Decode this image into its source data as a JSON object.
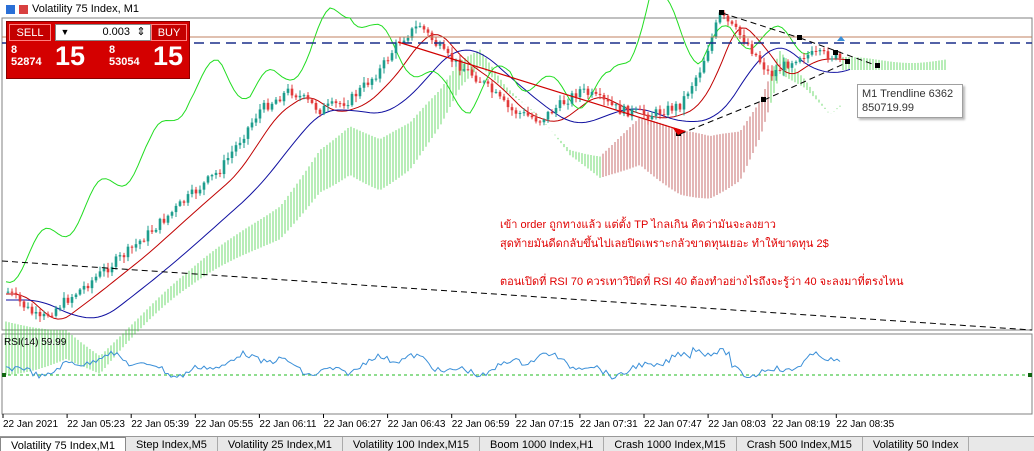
{
  "window": {
    "title": "Volatility 75 Index, M1"
  },
  "trade_panel": {
    "sell_label": "SELL",
    "buy_label": "BUY",
    "lot_value": "0.003",
    "sell_price_small_top": "8",
    "sell_price_small_bottom": "52874",
    "sell_price_big": "15",
    "buy_price_small_top": "8",
    "buy_price_small_bottom": "53054",
    "buy_price_big": "15"
  },
  "trendline_tooltip": {
    "line1": "M1 Trendline 6362",
    "line2": "850719.99"
  },
  "annotations": {
    "line1": "เข้า order ถูกทางแล้ว แต่ตั้ง TP ไกลเกิน คิดว่ามันจะลงยาว",
    "line2": "สุดท้ายมันดีดกลับขึ้นไปเลยปิดเพราะกลัวขาดทุนเยอะ ทำให้ขาดทุน 2$",
    "line3": "ตอนเปิดที่ RSI 70 ควรเทาวิปิดที่ RSI 40 ต้องทำอย่างไรถึงจะรู้ว่า 40 จะลงมาที่ตรงไหน"
  },
  "rsi": {
    "label": "RSI(14) 59.99"
  },
  "time_axis": [
    "22 Jan 2021",
    "22 Jan 05:23",
    "22 Jan 05:39",
    "22 Jan 05:55",
    "22 Jan 06:11",
    "22 Jan 06:27",
    "22 Jan 06:43",
    "22 Jan 06:59",
    "22 Jan 07:15",
    "22 Jan 07:31",
    "22 Jan 07:47",
    "22 Jan 08:03",
    "22 Jan 08:19",
    "22 Jan 08:35"
  ],
  "tabs": [
    {
      "label": "Volatility 75 Index,M1",
      "active": true
    },
    {
      "label": "Step Index,M5",
      "active": false
    },
    {
      "label": "Volatility 25 Index,M1",
      "active": false
    },
    {
      "label": "Volatility 100 Index,M15",
      "active": false
    },
    {
      "label": "Boom 1000 Index,H1",
      "active": false
    },
    {
      "label": "Crash 1000 Index,M15",
      "active": false
    },
    {
      "label": "Crash 500 Index,M15",
      "active": false
    },
    {
      "label": "Volatility 50 Index",
      "active": false
    }
  ],
  "colors": {
    "bull_candle": "#1e9e8e",
    "bear_candle": "#e23b3b",
    "cloud_green": "#33cc33",
    "cloud_red": "#b03030",
    "chikou": "#22dd22",
    "kijun": "#1010a0",
    "tenkan": "#c00000",
    "rsi_line": "#3a8fd8",
    "rsi_level": "#22bb22",
    "annotation": "#e00000"
  }
}
